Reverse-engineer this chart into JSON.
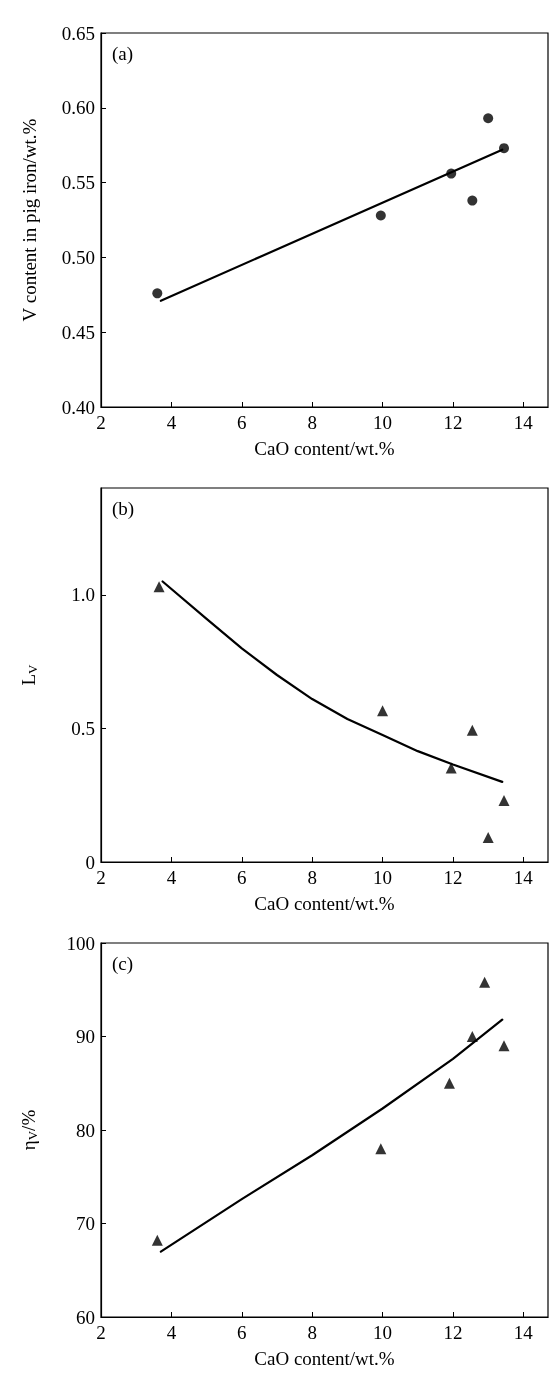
{
  "chart_data": [
    {
      "type": "scatter",
      "xlabel": "CaO content/wt.%",
      "ylabel": "V content in pig iron/wt.%",
      "annotations": [
        "(a)"
      ],
      "xlim": [
        2,
        14.7
      ],
      "xticks": [
        2,
        4,
        6,
        8,
        10,
        12,
        14
      ],
      "ylim": [
        0.4,
        0.65
      ],
      "yticks": [
        {
          "value": 0.4,
          "label": "0.40"
        },
        {
          "value": 0.45,
          "label": "0.45"
        },
        {
          "value": 0.5,
          "label": "0.50"
        },
        {
          "value": 0.55,
          "label": "0.55"
        },
        {
          "value": 0.6,
          "label": "0.60"
        },
        {
          "value": 0.65,
          "label": "0.65"
        }
      ],
      "grid": false,
      "series": [
        {
          "marker": "circle",
          "color": "#000000",
          "x": [
            3.6,
            9.95,
            11.95,
            12.55,
            13.0,
            13.45
          ],
          "values": [
            0.476,
            0.528,
            0.556,
            0.538,
            0.593,
            0.573
          ]
        },
        {
          "type": "line",
          "marker": "none",
          "line_style": "solid",
          "color": "#000000",
          "x": [
            3.7,
            13.4
          ],
          "values": [
            0.471,
            0.572
          ]
        }
      ]
    },
    {
      "type": "scatter",
      "xlabel": "CaO content/wt.%",
      "ylabel": "L$_{V}$",
      "annotations": [
        "(b)"
      ],
      "xlim": [
        2,
        14.7
      ],
      "xticks": [
        2,
        4,
        6,
        8,
        10,
        12,
        14
      ],
      "ylim": [
        0,
        1.4
      ],
      "yticks": [
        0,
        0.5,
        {
          "value": 1,
          "label": "1.0"
        }
      ],
      "grid": false,
      "series": [
        {
          "marker": "triangle",
          "color": "#000000",
          "x": [
            3.65,
            10.0,
            11.95,
            12.55,
            13.0,
            13.45
          ],
          "values": [
            1.03,
            0.566,
            0.352,
            0.493,
            0.092,
            0.23
          ]
        },
        {
          "type": "line",
          "marker": "none",
          "line_style": "solid",
          "color": "#000000",
          "x": [
            3.75,
            5,
            6,
            7,
            8,
            9,
            10,
            11,
            12,
            13.4
          ],
          "values": [
            1.05,
            0.91,
            0.8,
            0.7,
            0.61,
            0.535,
            0.475,
            0.415,
            0.365,
            0.3
          ]
        }
      ]
    },
    {
      "type": "scatter",
      "xlabel": "CaO content/wt.%",
      "ylabel": "η$_{V}$/%",
      "annotations": [
        "(c)"
      ],
      "xlim": [
        2,
        14.7
      ],
      "xticks": [
        2,
        4,
        6,
        8,
        10,
        12,
        14
      ],
      "ylim": [
        60,
        100
      ],
      "yticks": [
        60,
        70,
        80,
        90,
        100
      ],
      "grid": false,
      "series": [
        {
          "marker": "triangle",
          "color": "#000000",
          "x": [
            3.6,
            9.95,
            11.9,
            12.55,
            12.9,
            13.45
          ],
          "values": [
            68.2,
            78.0,
            85.0,
            90.0,
            95.8,
            89.0
          ]
        },
        {
          "type": "line",
          "marker": "none",
          "line_style": "solid",
          "color": "#000000",
          "x": [
            3.7,
            6,
            8,
            10,
            12,
            13.4
          ],
          "values": [
            67.0,
            72.6,
            77.3,
            82.3,
            87.6,
            91.8
          ]
        }
      ]
    }
  ]
}
